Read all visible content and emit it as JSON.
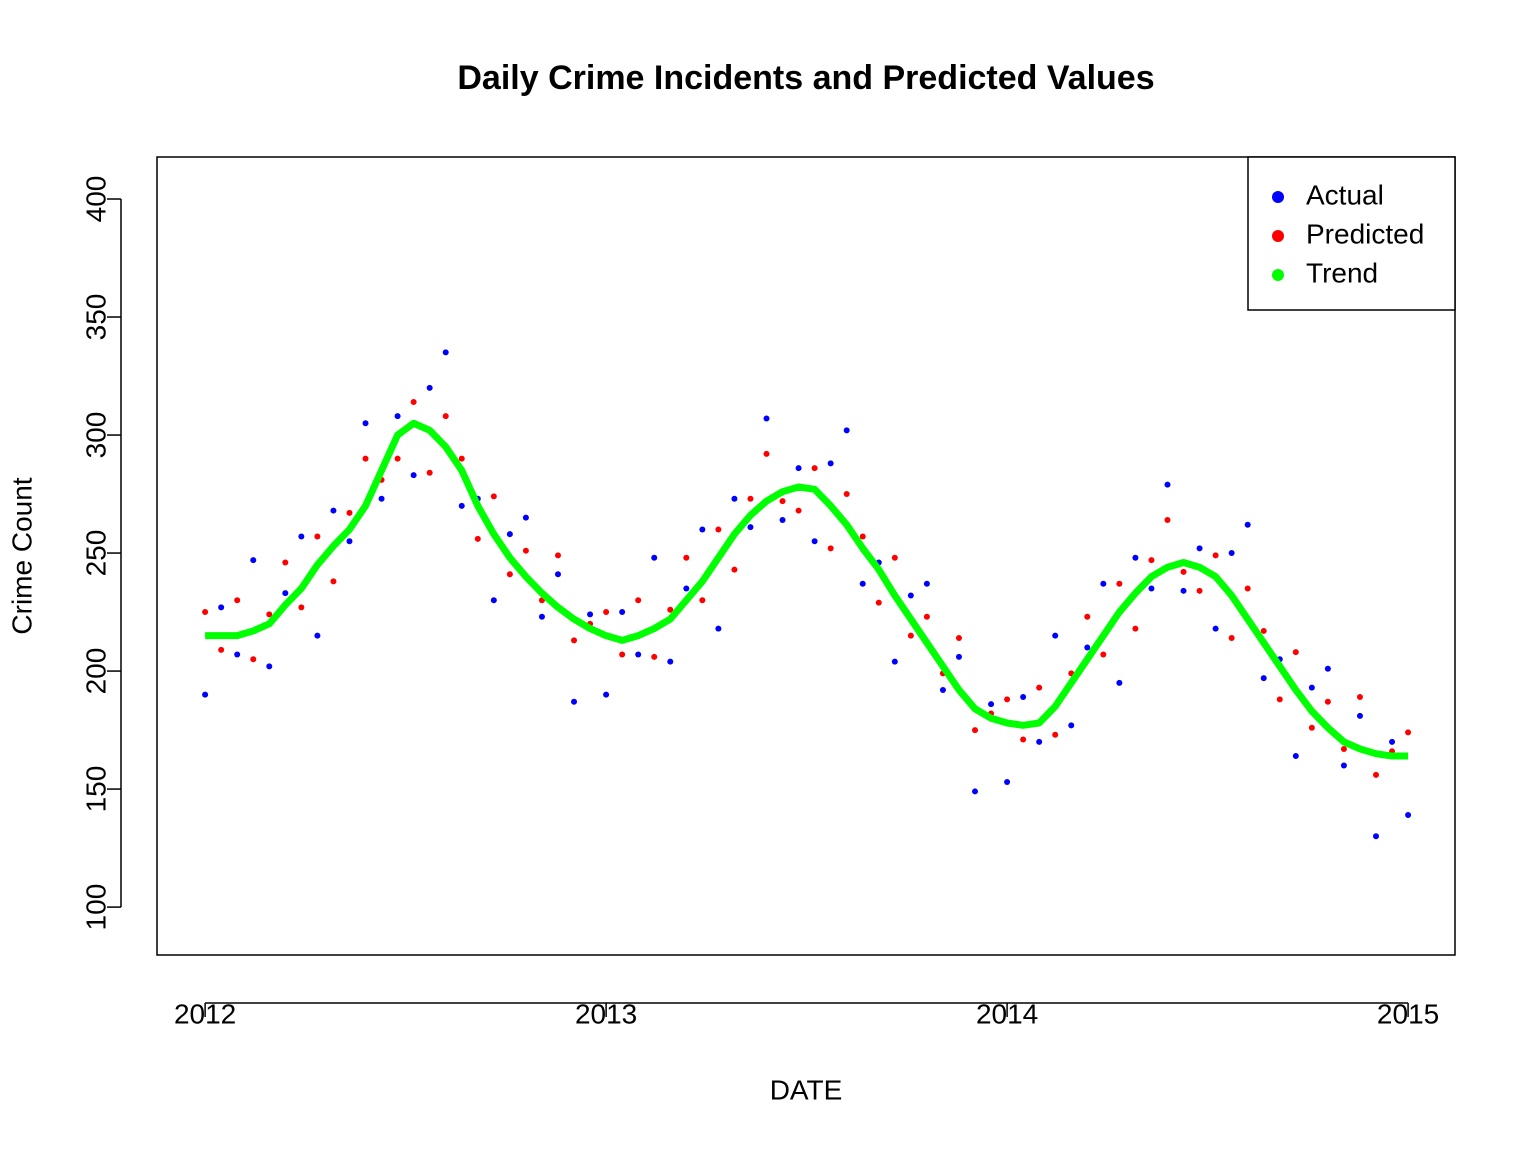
{
  "chart_data": {
    "type": "scatter",
    "title": "Daily Crime Incidents and Predicted Values",
    "x_label": "DATE",
    "y_label": "Crime Count",
    "xlim": [
      2011.88,
      2015.117
    ],
    "xticks": [
      2012,
      2013,
      2014,
      2015
    ],
    "ylim": [
      79.7,
      417.8
    ],
    "yticks": [
      100,
      150,
      200,
      250,
      300,
      350,
      400
    ],
    "legend_position": "top-right",
    "x": [
      2012.0,
      2012.04,
      2012.08,
      2012.12,
      2012.16,
      2012.2,
      2012.24,
      2012.28,
      2012.32,
      2012.36,
      2012.4,
      2012.44,
      2012.48,
      2012.52,
      2012.56,
      2012.6,
      2012.64,
      2012.68,
      2012.72,
      2012.76,
      2012.8,
      2012.84,
      2012.88,
      2012.92,
      2012.96,
      2013.0,
      2013.04,
      2013.08,
      2013.12,
      2013.16,
      2013.2,
      2013.24,
      2013.28,
      2013.32,
      2013.36,
      2013.4,
      2013.44,
      2013.48,
      2013.52,
      2013.56,
      2013.6,
      2013.64,
      2013.68,
      2013.72,
      2013.76,
      2013.8,
      2013.84,
      2013.88,
      2013.92,
      2013.96,
      2014.0,
      2014.04,
      2014.08,
      2014.12,
      2014.16,
      2014.2,
      2014.24,
      2014.28,
      2014.32,
      2014.36,
      2014.4,
      2014.44,
      2014.48,
      2014.52,
      2014.56,
      2014.6,
      2014.64,
      2014.68,
      2014.72,
      2014.76,
      2014.8,
      2014.84,
      2014.88,
      2014.92,
      2014.96,
      2015.0
    ],
    "series": [
      {
        "name": "Actual",
        "color": "#0000ff",
        "mode": "points",
        "values": [
          190,
          227,
          207,
          247,
          202,
          233,
          257,
          215,
          268,
          255,
          305,
          273,
          308,
          283,
          320,
          335,
          270,
          273,
          230,
          258,
          265,
          223,
          241,
          187,
          224,
          190,
          225,
          207,
          248,
          204,
          235,
          260,
          218,
          273,
          261,
          307,
          264,
          286,
          255,
          288,
          302,
          237,
          246,
          204,
          232,
          237,
          192,
          206,
          149,
          186,
          153,
          189,
          170,
          215,
          177,
          210,
          237,
          195,
          248,
          235,
          279,
          234,
          252,
          218,
          250,
          262,
          197,
          205,
          164,
          193,
          201,
          160,
          181,
          130,
          170,
          139
        ]
      },
      {
        "name": "Predicted",
        "color": "#ff0000",
        "mode": "points",
        "values": [
          225,
          209,
          230,
          205,
          224,
          246,
          227,
          257,
          238,
          267,
          290,
          281,
          290,
          314,
          284,
          308,
          290,
          256,
          274,
          241,
          251,
          230,
          249,
          213,
          220,
          225,
          207,
          230,
          206,
          226,
          248,
          230,
          260,
          243,
          273,
          292,
          272,
          268,
          286,
          252,
          275,
          257,
          229,
          248,
          215,
          223,
          199,
          214,
          175,
          182,
          188,
          171,
          193,
          173,
          199,
          223,
          207,
          237,
          218,
          247,
          264,
          242,
          234,
          249,
          214,
          235,
          217,
          188,
          208,
          176,
          187,
          167,
          189,
          156,
          166,
          174
        ]
      },
      {
        "name": "Trend",
        "color": "#00ff00",
        "mode": "line",
        "values": [
          215,
          215,
          215,
          217,
          220,
          228,
          235,
          245,
          253,
          260,
          270,
          285,
          300,
          305,
          302,
          295,
          285,
          270,
          258,
          248,
          240,
          233,
          227,
          222,
          218,
          215,
          213,
          215,
          218,
          222,
          230,
          238,
          248,
          258,
          266,
          272,
          276,
          278,
          277,
          270,
          262,
          252,
          243,
          232,
          222,
          212,
          202,
          192,
          184,
          180,
          178,
          177,
          178,
          185,
          195,
          205,
          215,
          225,
          233,
          240,
          244,
          246,
          244,
          240,
          232,
          222,
          212,
          202,
          192,
          183,
          176,
          170,
          167,
          165,
          164,
          164
        ]
      }
    ]
  }
}
